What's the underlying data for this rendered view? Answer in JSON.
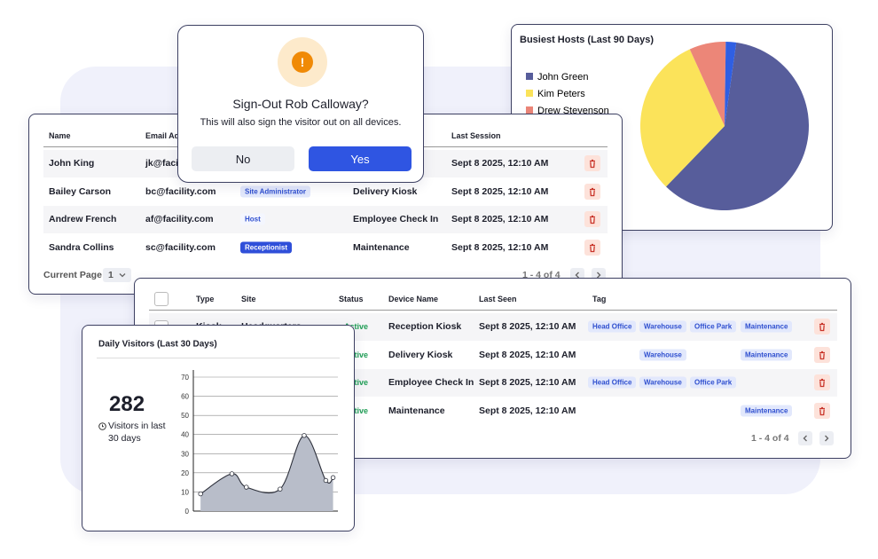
{
  "dialog": {
    "icon": "!",
    "title": "Sign-Out Rob Calloway?",
    "message": "This will also sign the visitor out on all devices.",
    "cancel": "No",
    "confirm": "Yes"
  },
  "users_table": {
    "columns": {
      "name": "Name",
      "email": "Email Address",
      "last_session": "Last Session"
    },
    "rows": [
      {
        "name": "John King",
        "email": "jk@facility.com",
        "last_session": "Sept 8 2025, 12:10 AM"
      },
      {
        "name": "Bailey Carson",
        "email": "bc@facility.com",
        "role": "Site Administrator",
        "role_style": "light",
        "device": "Delivery Kiosk",
        "last_session": "Sept 8 2025, 12:10 AM"
      },
      {
        "name": "Andrew French",
        "email": "af@facility.com",
        "role": "Host",
        "role_style": "plain",
        "device": "Employee Check In",
        "last_session": "Sept 8 2025, 12:10 AM"
      },
      {
        "name": "Sandra Collins",
        "email": "sc@facility.com",
        "role": "Receptionist",
        "role_style": "solid",
        "device": "Maintenance",
        "last_session": "Sept 8 2025, 12:10 AM"
      }
    ],
    "page_label": "Current Page",
    "page": "1",
    "range": "1 - 4 of 4"
  },
  "devices_table": {
    "columns": {
      "type": "Type",
      "site": "Site",
      "status": "Status",
      "device": "Device Name",
      "last_seen": "Last Seen",
      "tag": "Tag"
    },
    "rows": [
      {
        "type": "Kiosk",
        "site": "Headquarters",
        "status": "Active",
        "device": "Reception Kiosk",
        "last_seen": "Sept 8 2025, 12:10 AM",
        "tags": [
          "Head Office",
          "Warehouse",
          "Office Park",
          "Maintenance"
        ]
      },
      {
        "status": "Active",
        "device": "Delivery Kiosk",
        "last_seen": "Sept 8 2025, 12:10 AM",
        "tags": [
          null,
          "Warehouse",
          null,
          "Maintenance"
        ]
      },
      {
        "status": "Active",
        "device": "Employee Check In",
        "last_seen": "Sept 8 2025, 12:10 AM",
        "tags": [
          "Head Office",
          "Warehouse",
          "Office Park",
          null
        ]
      },
      {
        "status": "Active",
        "device": "Maintenance",
        "last_seen": "Sept 8 2025, 12:10 AM",
        "tags": [
          null,
          null,
          null,
          "Maintenance"
        ]
      }
    ],
    "range": "1 - 4 of 4"
  },
  "chart_data": [
    {
      "type": "pie",
      "title": "Busiest Hosts (Last 90 Days)",
      "categories": [
        "John Green",
        "Kim Peters",
        "Drew Stevenson",
        null
      ],
      "values": [
        60,
        31,
        7,
        2
      ],
      "colors": [
        "#575d9b",
        "#fbe35a",
        "#ec8678",
        "#2f5fe3"
      ]
    },
    {
      "type": "area",
      "title": "Daily Visitors (Last 30 Days)",
      "total": 282,
      "total_label": "Visitors in last 30 days",
      "x": [
        1.5,
        8,
        11,
        18,
        23,
        27.5,
        29
      ],
      "values": [
        9,
        19.5,
        12.5,
        11.5,
        39.5,
        16,
        17.5
      ],
      "xlim": [
        0,
        30
      ],
      "ylim": [
        0,
        70
      ],
      "yticks": [
        0,
        10,
        20,
        30,
        40,
        50,
        60,
        70
      ],
      "color": "#b8bdc9",
      "line_color": "#2c2f3a",
      "grid": true
    }
  ]
}
